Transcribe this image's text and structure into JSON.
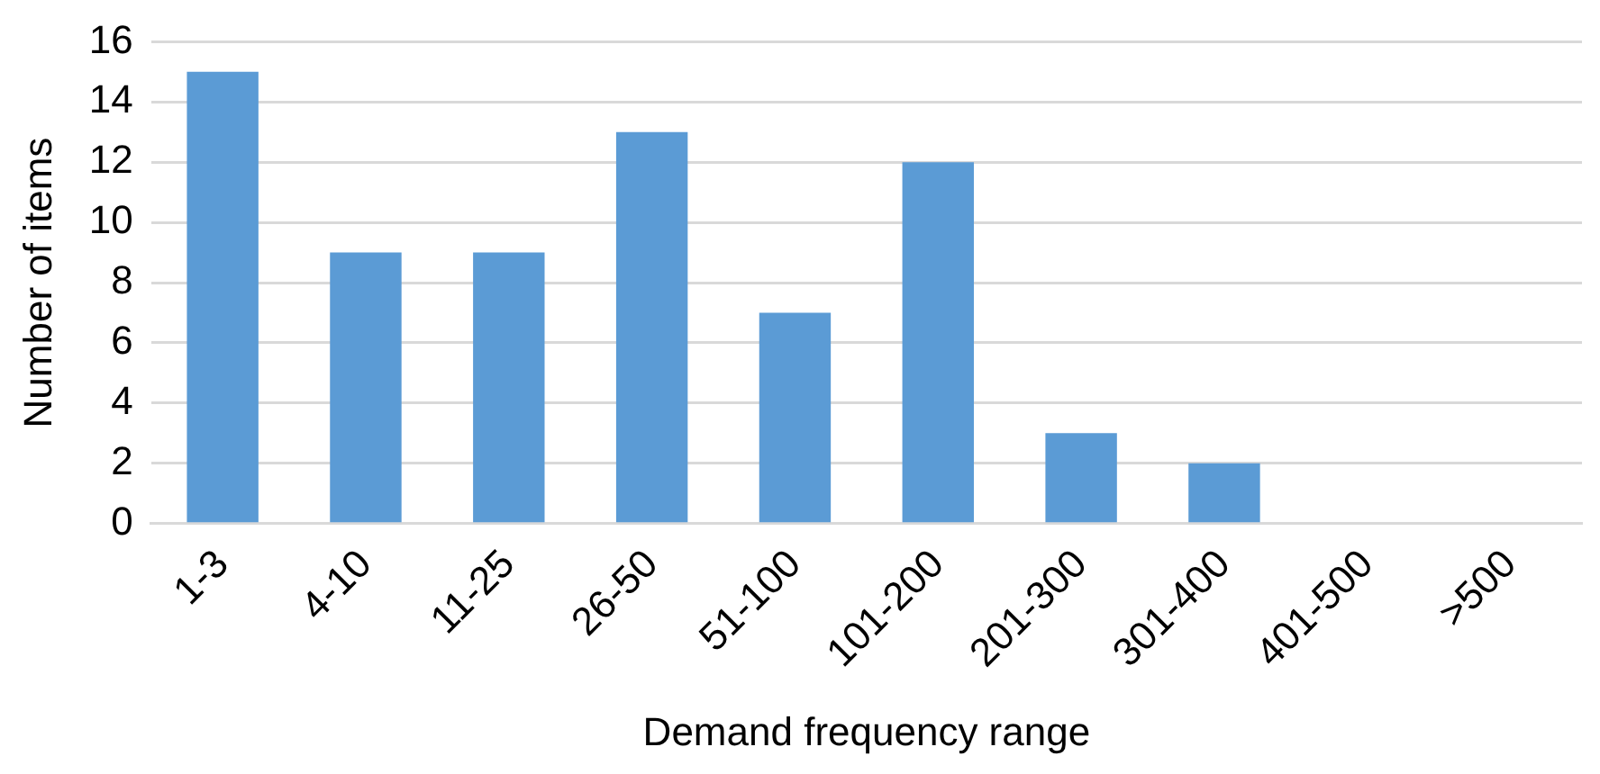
{
  "chart_data": {
    "type": "bar",
    "xlabel": "Demand frequency range",
    "ylabel": "Number of items",
    "categories": [
      "1-3",
      "4-10",
      "11-25",
      "26-50",
      "51-100",
      "101-200",
      "201-300",
      "301-400",
      "401-500",
      ">500"
    ],
    "values": [
      15,
      9,
      9,
      13,
      7,
      12,
      3,
      2,
      0,
      0
    ],
    "color": "#5b9bd5",
    "ylim": [
      0,
      16
    ],
    "yticks": [
      0,
      2,
      4,
      6,
      8,
      10,
      12,
      14,
      16
    ],
    "grid": "y",
    "legend": false
  }
}
